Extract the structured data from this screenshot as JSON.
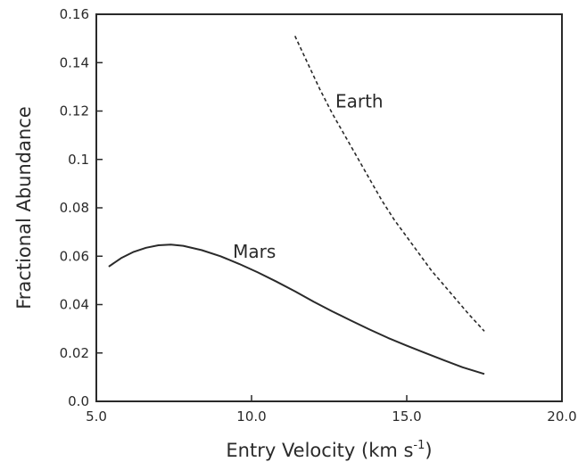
{
  "chart_data": {
    "type": "line",
    "title": "",
    "xlabel": "Entry Velocity (km s",
    "xlabel_sup": "-1",
    "xlabel_close": ")",
    "ylabel": "Fractional Abundance",
    "xlim": [
      5.0,
      20.0
    ],
    "ylim": [
      0.0,
      0.16
    ],
    "x_ticks": [
      5.0,
      10.0,
      15.0,
      20.0
    ],
    "x_tick_labels": [
      "5.0",
      "10.0",
      "15.0",
      "20.0"
    ],
    "y_ticks": [
      0.0,
      0.02,
      0.04,
      0.06,
      0.08,
      0.1,
      0.12,
      0.14,
      0.16
    ],
    "y_tick_labels": [
      "0.0",
      "0.02",
      "0.04",
      "0.06",
      "0.08",
      "0.1",
      "0.12",
      "0.14",
      "0.16"
    ],
    "grid": false,
    "legend": "none",
    "series": [
      {
        "name": "Mars",
        "style": "solid",
        "color": "#2a2a2a",
        "label_at": [
          9.4,
          0.062
        ],
        "x": [
          5.4,
          5.8,
          6.2,
          6.6,
          7.0,
          7.4,
          7.8,
          8.4,
          9.0,
          9.6,
          10.2,
          10.8,
          11.4,
          12.0,
          12.6,
          13.2,
          13.8,
          14.4,
          15.0,
          15.6,
          16.2,
          16.8,
          17.5
        ],
        "y": [
          0.0557,
          0.0592,
          0.0618,
          0.0635,
          0.0645,
          0.0648,
          0.0643,
          0.0625,
          0.06,
          0.0568,
          0.0533,
          0.0495,
          0.0455,
          0.0412,
          0.0372,
          0.0334,
          0.0297,
          0.0262,
          0.023,
          0.02,
          0.017,
          0.0141,
          0.0113
        ]
      },
      {
        "name": "Earth",
        "style": "dashed",
        "color": "#2a2a2a",
        "label_at": [
          12.7,
          0.124
        ],
        "x": [
          11.4,
          11.8,
          12.2,
          12.6,
          13.0,
          13.4,
          13.8,
          14.2,
          14.6,
          15.0,
          15.4,
          15.8,
          16.2,
          16.6,
          17.0,
          17.5
        ],
        "y": [
          0.151,
          0.14,
          0.129,
          0.119,
          0.11,
          0.101,
          0.092,
          0.083,
          0.075,
          0.068,
          0.061,
          0.054,
          0.048,
          0.042,
          0.036,
          0.029
        ]
      }
    ]
  }
}
